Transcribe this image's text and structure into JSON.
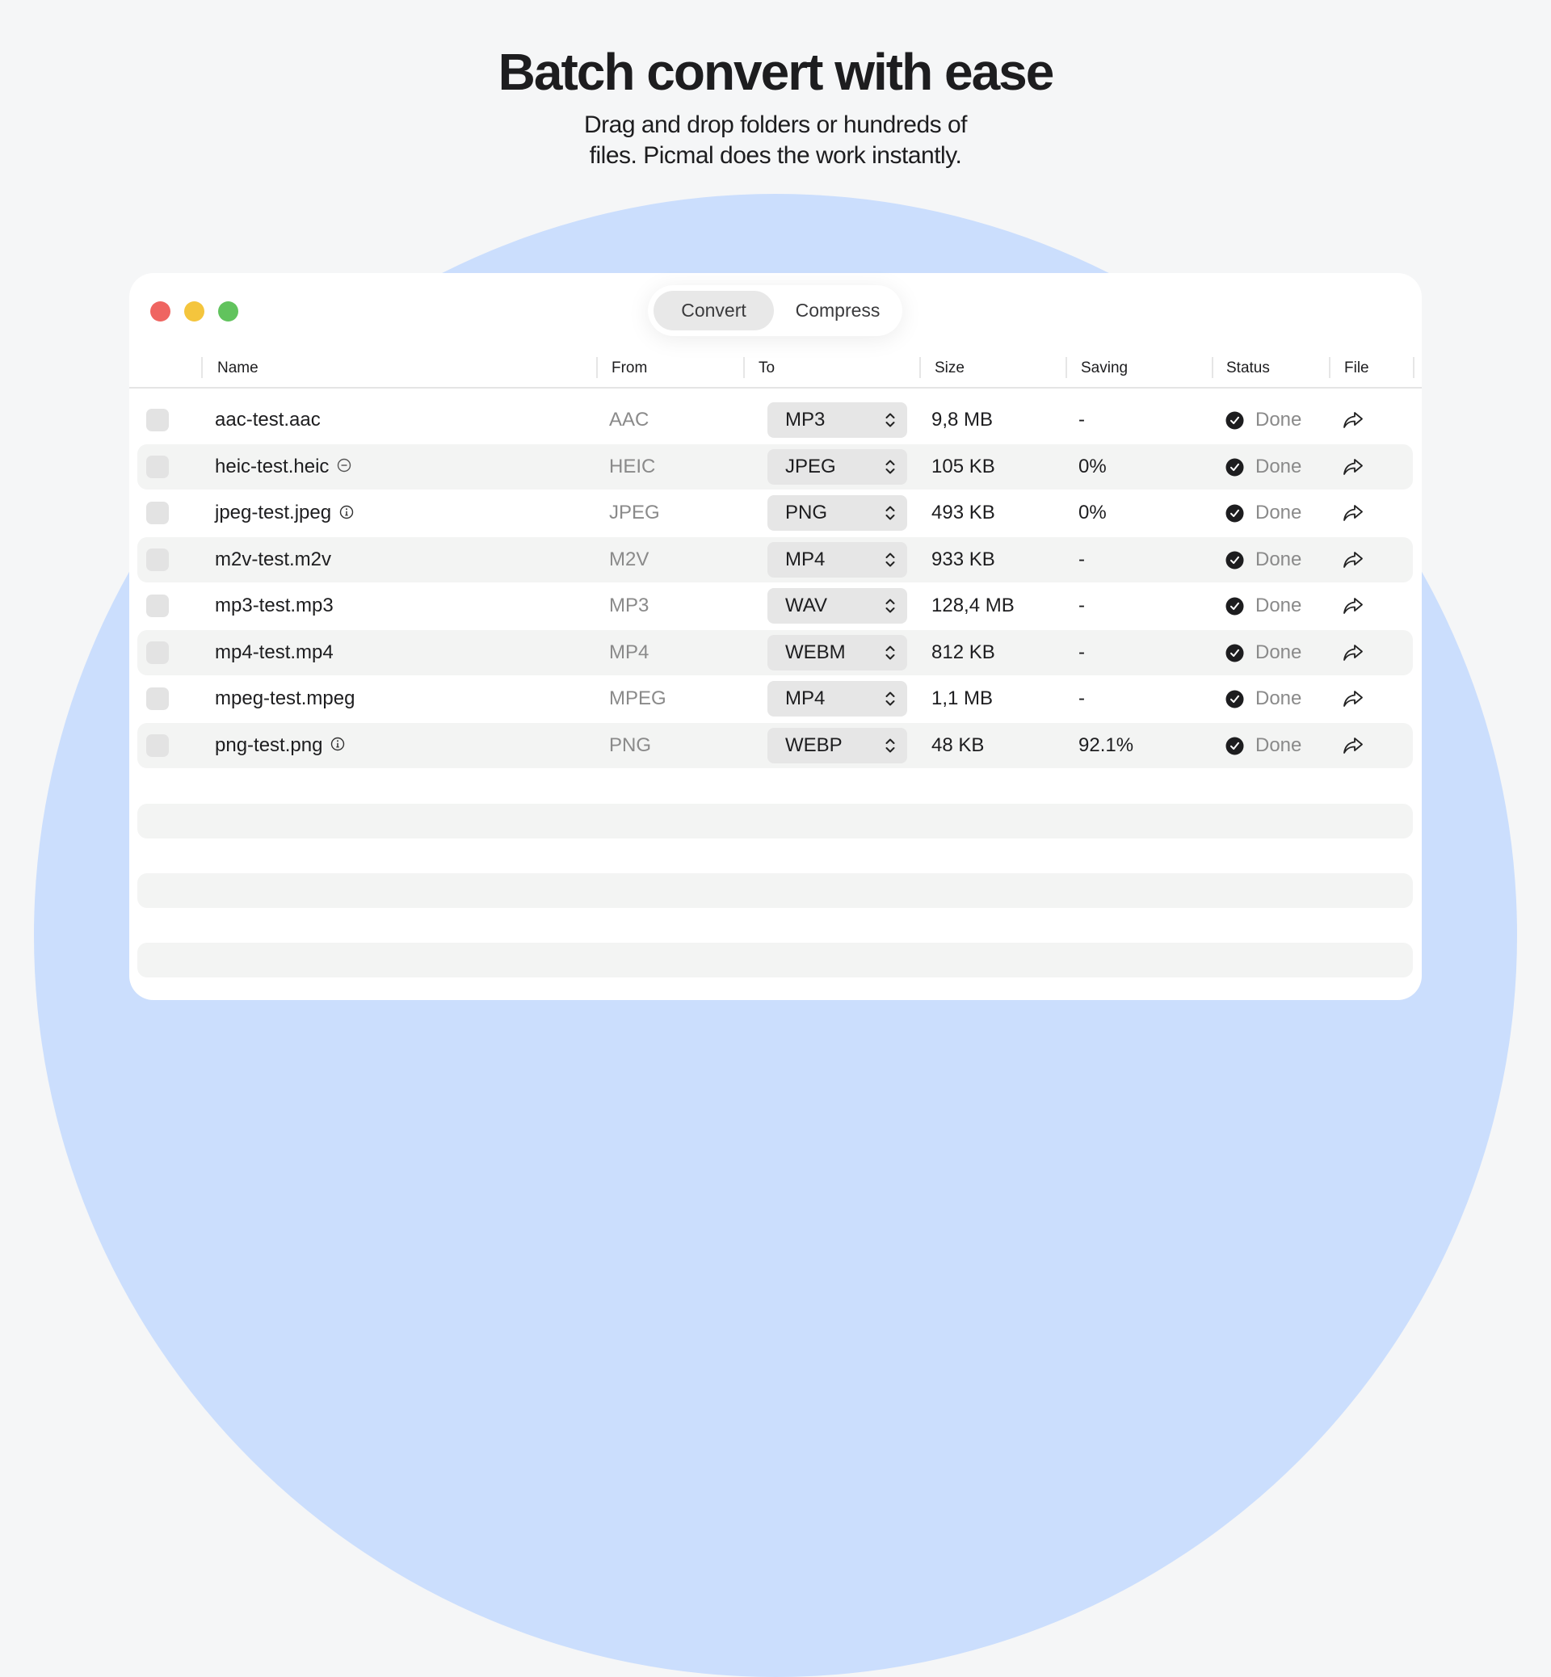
{
  "hero": {
    "title": "Batch convert with ease",
    "subtitle_line1": "Drag and drop folders or hundreds of",
    "subtitle_line2": "files. Picmal does the work instantly."
  },
  "colors": {
    "accent_circle": "#cbdefd",
    "close": "#ef6561",
    "minimize": "#f4c53d",
    "zoom": "#61c35d"
  },
  "mode_switch": {
    "options": [
      "Convert",
      "Compress"
    ],
    "selected": "Convert"
  },
  "table": {
    "headers": [
      "Name",
      "From",
      "To",
      "Size",
      "Saving",
      "Status",
      "File"
    ],
    "rows": [
      {
        "name": "aac-test.aac",
        "badge": "",
        "from": "AAC",
        "to": "MP3",
        "size": "9,8 MB",
        "saving": "-",
        "status": "Done"
      },
      {
        "name": "heic-test.heic",
        "badge": "minus-circle-icon",
        "from": "HEIC",
        "to": "JPEG",
        "size": "105 KB",
        "saving": "0%",
        "status": "Done"
      },
      {
        "name": "jpeg-test.jpeg",
        "badge": "info-circle-icon",
        "from": "JPEG",
        "to": "PNG",
        "size": "493 KB",
        "saving": "0%",
        "status": "Done"
      },
      {
        "name": "m2v-test.m2v",
        "badge": "",
        "from": "M2V",
        "to": "MP4",
        "size": "933 KB",
        "saving": "-",
        "status": "Done"
      },
      {
        "name": "mp3-test.mp3",
        "badge": "",
        "from": "MP3",
        "to": "WAV",
        "size": "128,4 MB",
        "saving": "-",
        "status": "Done"
      },
      {
        "name": "mp4-test.mp4",
        "badge": "",
        "from": "MP4",
        "to": "WEBM",
        "size": "812 KB",
        "saving": "-",
        "status": "Done"
      },
      {
        "name": "mpeg-test.mpeg",
        "badge": "",
        "from": "MPEG",
        "to": "MP4",
        "size": "1,1 MB",
        "saving": "-",
        "status": "Done"
      },
      {
        "name": "png-test.png",
        "badge": "info-circle-icon",
        "from": "PNG",
        "to": "WEBP",
        "size": "48 KB",
        "saving": "92.1%",
        "status": "Done"
      }
    ]
  }
}
